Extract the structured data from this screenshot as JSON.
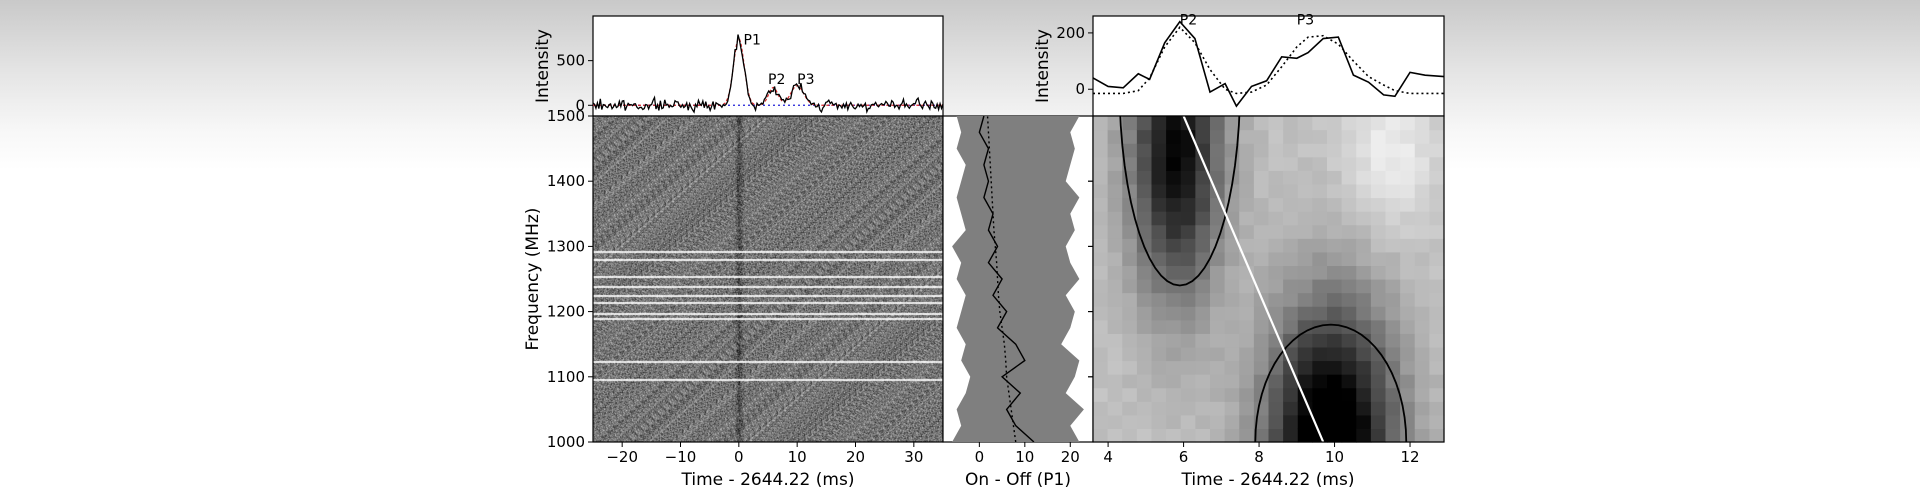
{
  "chart_data": [
    {
      "id": "top_left",
      "type": "line",
      "ylabel": "Intensity",
      "xlim": [
        -25,
        35
      ],
      "ylim": [
        -120,
        1000
      ],
      "yticks": [
        0,
        500
      ],
      "annotations": [
        {
          "text": "P1",
          "x": 0.8,
          "y": 680
        },
        {
          "text": "P2",
          "x": 5.0,
          "y": 240
        },
        {
          "text": "P3",
          "x": 10.0,
          "y": 240
        }
      ],
      "peaks": [
        {
          "t": 0.0,
          "amp": 750,
          "width": 0.9
        },
        {
          "t": 5.9,
          "amp": 200,
          "width": 0.8
        },
        {
          "t": 10.0,
          "amp": 220,
          "width": 1.1
        }
      ],
      "noise_rms": 30,
      "colors": {
        "profile": "#000000",
        "fit": "#d62728",
        "baseline": "#1f1fd6"
      }
    },
    {
      "id": "top_right",
      "type": "line",
      "ylabel": "Intensity",
      "xlim": [
        3.6,
        12.9
      ],
      "ylim": [
        -95,
        260
      ],
      "yticks": [
        0,
        200
      ],
      "annotations": [
        {
          "text": "P2",
          "x": 5.9,
          "y": 230
        },
        {
          "text": "P3",
          "x": 9.0,
          "y": 230
        }
      ],
      "series": [
        {
          "style": "solid",
          "x": [
            3.6,
            4.0,
            4.4,
            4.8,
            5.1,
            5.5,
            5.9,
            6.3,
            6.7,
            7.1,
            7.4,
            7.8,
            8.2,
            8.6,
            9.0,
            9.3,
            9.7,
            10.1,
            10.5,
            10.9,
            11.3,
            11.6,
            12.0,
            12.4,
            12.9
          ],
          "y": [
            40,
            10,
            5,
            55,
            35,
            165,
            240,
            180,
            -10,
            20,
            -60,
            10,
            30,
            115,
            110,
            130,
            180,
            185,
            50,
            25,
            -20,
            -25,
            60,
            50,
            45
          ]
        },
        {
          "style": "dotted",
          "x": [
            3.6,
            4.0,
            4.4,
            4.8,
            5.1,
            5.5,
            5.9,
            6.3,
            6.7,
            7.1,
            7.4,
            7.8,
            8.2,
            8.6,
            9.0,
            9.3,
            9.7,
            10.1,
            10.5,
            10.9,
            11.3,
            11.6,
            12.0,
            12.4,
            12.9
          ],
          "y": [
            -15,
            -15,
            -15,
            -5,
            40,
            150,
            220,
            165,
            70,
            0,
            -15,
            -10,
            15,
            80,
            150,
            185,
            190,
            160,
            100,
            45,
            15,
            -5,
            -15,
            -15,
            -15
          ]
        }
      ]
    },
    {
      "id": "dynamic_spectrum",
      "type": "heatmap",
      "ylabel": "Frequency (MHz)",
      "xlabel": "Time - 2644.22 (ms)",
      "xlim": [
        -25,
        35
      ],
      "ylim": [
        1000,
        1500
      ],
      "xticks": [
        -20,
        -10,
        0,
        10,
        20,
        30
      ],
      "yticks": [
        1000,
        1100,
        1200,
        1300,
        1400,
        1500
      ],
      "colormap": "grayscale",
      "pulse_time": 0,
      "rfi_channels_mhz": [
        1293,
        1281,
        1255,
        1240,
        1226,
        1214,
        1198,
        1190,
        1125,
        1096
      ]
    },
    {
      "id": "on_off",
      "type": "line",
      "xlabel": "On - Off (P1)",
      "xlim": [
        -8,
        25
      ],
      "ylim": [
        1000,
        1500
      ],
      "xticks": [
        0,
        10,
        20
      ],
      "band_color": "#7f7f7f",
      "freq_mhz": [
        1000,
        1025,
        1050,
        1075,
        1100,
        1125,
        1150,
        1175,
        1200,
        1225,
        1250,
        1275,
        1300,
        1325,
        1350,
        1375,
        1400,
        1425,
        1450,
        1475,
        1500
      ],
      "solid": [
        12,
        8,
        6,
        9,
        5,
        10,
        8,
        4,
        6,
        3,
        5,
        2,
        4,
        2,
        3,
        1,
        2,
        1,
        2,
        0,
        1
      ],
      "dotted": [
        8,
        7.5,
        7,
        6.5,
        6,
        5.8,
        5.5,
        5,
        4.5,
        4.2,
        4,
        3.8,
        3.5,
        3.2,
        3,
        2.8,
        2.6,
        2.4,
        2.2,
        2,
        1.8
      ],
      "band_lower": [
        -6,
        -4,
        -5,
        -3,
        -2,
        -4,
        -3,
        -5,
        -4,
        -3,
        -5,
        -4,
        -6,
        -3,
        -4,
        -5,
        -4,
        -3,
        -5,
        -4,
        -5
      ],
      "band_upper": [
        22,
        20,
        23,
        19,
        21,
        22,
        18,
        20,
        21,
        19,
        22,
        20,
        19,
        21,
        20,
        22,
        19,
        20,
        21,
        20,
        22
      ]
    },
    {
      "id": "smoothed_spectrum",
      "type": "heatmap",
      "xlabel": "Time - 2644.22 (ms)",
      "xlim": [
        3.6,
        12.9
      ],
      "ylim": [
        1000,
        1500
      ],
      "xticks": [
        4,
        6,
        8,
        10,
        12
      ],
      "colormap": "grayscale",
      "component_1": {
        "t": 5.8,
        "freq": 1450,
        "amp": 0.8,
        "sigma_t": 0.85,
        "sigma_f": 160
      },
      "component_2": {
        "t": 9.9,
        "freq": 1000,
        "amp": 1.0,
        "sigma_t": 1.2,
        "sigma_f": 150
      },
      "contour_1": {
        "center_t": 5.9,
        "center_f": 1550,
        "radius_t": 1.6,
        "radius_f": 310
      },
      "contour_2": {
        "center_t": 9.9,
        "center_f": 1000,
        "radius_t": 2.0,
        "radius_f": 180
      },
      "drift_line": {
        "t0": 6.0,
        "f0": 1500,
        "t1": 9.7,
        "f1": 1000,
        "color": "#ffffff"
      }
    }
  ]
}
